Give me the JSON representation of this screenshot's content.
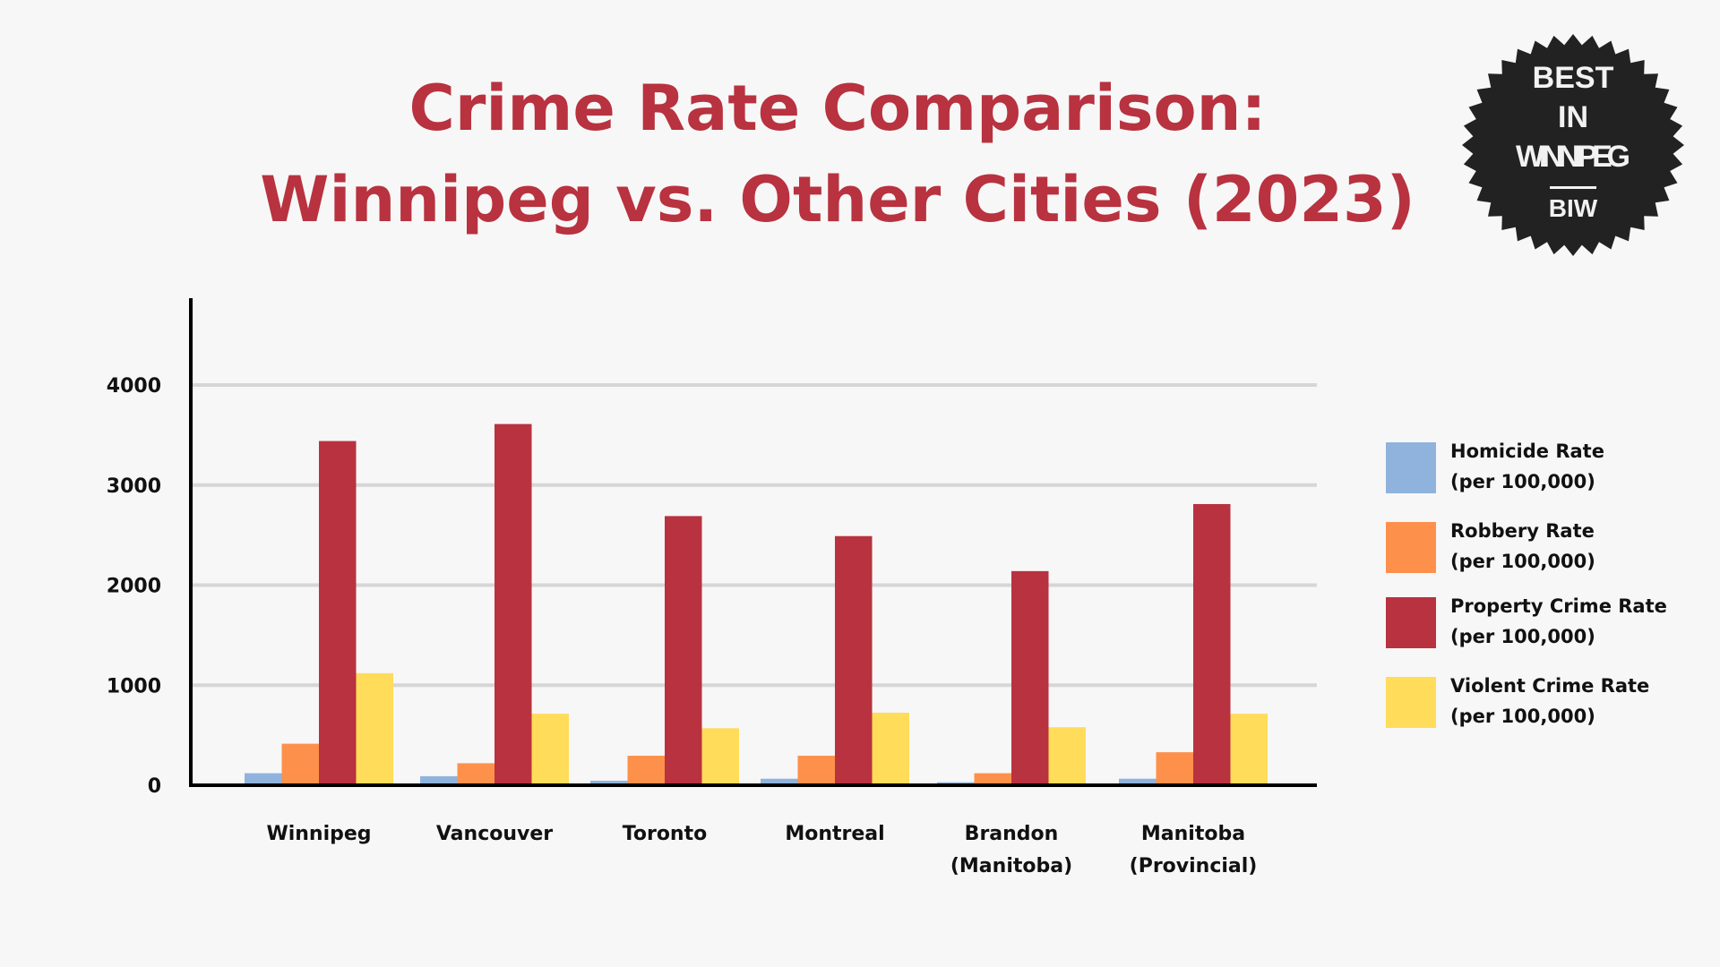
{
  "title_line1": "Crime Rate Comparison:",
  "title_line2": "Winnipeg vs. Other Cities (2023)",
  "badge": {
    "lines": [
      "BEST",
      "IN",
      "WINNIPEG",
      "BIW"
    ]
  },
  "chart_data": {
    "type": "bar",
    "title": "Crime Rate Comparison: Winnipeg vs. Other Cities (2023)",
    "categories": [
      [
        "Winnipeg"
      ],
      [
        "Vancouver"
      ],
      [
        "Toronto"
      ],
      [
        "Montreal"
      ],
      [
        "Brandon",
        "(Manitoba)"
      ],
      [
        "Manitoba",
        "(Provincial)"
      ]
    ],
    "yticks": [
      0,
      1000,
      2000,
      3000,
      4000
    ],
    "ylim": [
      0,
      4800
    ],
    "grid": true,
    "legend_position": "right",
    "series": [
      {
        "name": [
          "Homicide Rate",
          "(per 100,000)"
        ],
        "color": "#8fb3dc",
        "values": [
          120,
          90,
          45,
          65,
          30,
          65
        ]
      },
      {
        "name": [
          "Robbery Rate",
          "(per 100,000)"
        ],
        "color": "#fd914b",
        "values": [
          415,
          220,
          295,
          295,
          120,
          330
        ]
      },
      {
        "name": [
          "Property Crime Rate",
          "(per 100,000)"
        ],
        "color": "#b8323f",
        "values": [
          3440,
          3610,
          2690,
          2490,
          2140,
          2810
        ]
      },
      {
        "name": [
          "Violent Crime Rate",
          "(per 100,000)"
        ],
        "color": "#ffdc5a",
        "values": [
          1120,
          715,
          570,
          725,
          580,
          715
        ]
      }
    ]
  }
}
